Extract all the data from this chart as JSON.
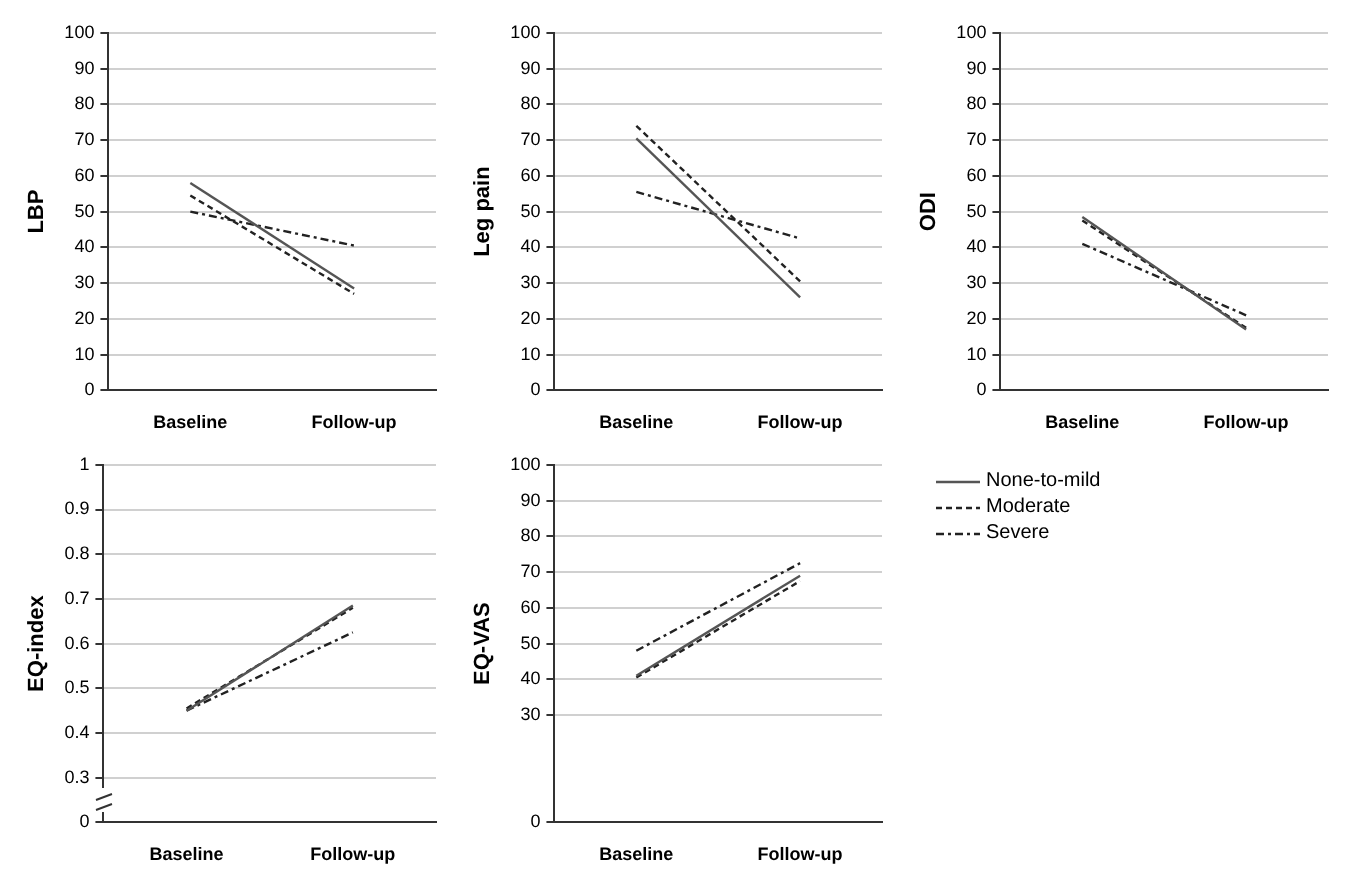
{
  "chart_data": [
    {
      "type": "line",
      "ylabel": "LBP",
      "categories": [
        "Baseline",
        "Follow-up"
      ],
      "ylim": [
        0,
        100
      ],
      "yticks": [
        0,
        10,
        20,
        30,
        40,
        50,
        60,
        70,
        80,
        90,
        100
      ],
      "grid": "y",
      "marker": "none",
      "series": [
        {
          "color": "#555555",
          "line_style": "solid",
          "values": [
            58,
            28.5
          ]
        },
        {
          "color": "#222222",
          "line_style": "dashed",
          "values": [
            54.5,
            27
          ]
        },
        {
          "color": "#222222",
          "line_style": "dashdot",
          "values": [
            50,
            40.5
          ]
        }
      ]
    },
    {
      "type": "line",
      "ylabel": "Leg pain",
      "categories": [
        "Baseline",
        "Follow-up"
      ],
      "ylim": [
        0,
        100
      ],
      "yticks": [
        0,
        10,
        20,
        30,
        40,
        50,
        60,
        70,
        80,
        90,
        100
      ],
      "grid": "y",
      "marker": "none",
      "series": [
        {
          "color": "#555555",
          "line_style": "solid",
          "values": [
            70.5,
            26
          ]
        },
        {
          "color": "#222222",
          "line_style": "dashed",
          "values": [
            74,
            30.5
          ]
        },
        {
          "color": "#222222",
          "line_style": "dashdot",
          "values": [
            55.5,
            42.5
          ]
        }
      ]
    },
    {
      "type": "line",
      "ylabel": "ODI",
      "categories": [
        "Baseline",
        "Follow-up"
      ],
      "ylim": [
        0,
        100
      ],
      "yticks": [
        0,
        10,
        20,
        30,
        40,
        50,
        60,
        70,
        80,
        90,
        100
      ],
      "grid": "y",
      "marker": "none",
      "series": [
        {
          "color": "#555555",
          "line_style": "solid",
          "values": [
            48.5,
            17
          ]
        },
        {
          "color": "#222222",
          "line_style": "dashed",
          "values": [
            47.5,
            17.5
          ]
        },
        {
          "color": "#222222",
          "line_style": "dashdot",
          "values": [
            41,
            21
          ]
        }
      ]
    },
    {
      "type": "line",
      "ylabel": "EQ-index",
      "categories": [
        "Baseline",
        "Follow-up"
      ],
      "ylim": [
        0.2,
        1
      ],
      "yticks": [
        {
          "value": 0.2,
          "label": "0"
        },
        0.3,
        0.4,
        0.5,
        0.6,
        0.7,
        0.8,
        0.9,
        1
      ],
      "grid": "y",
      "marker": "none",
      "series": [
        {
          "color": "#555555",
          "line_style": "solid",
          "values": [
            0.45,
            0.685
          ]
        },
        {
          "color": "#222222",
          "line_style": "dashed",
          "values": [
            0.455,
            0.68
          ]
        },
        {
          "color": "#222222",
          "line_style": "dashdot",
          "values": [
            0.45,
            0.625
          ]
        }
      ]
    },
    {
      "type": "line",
      "ylabel": "EQ-VAS",
      "categories": [
        "Baseline",
        "Follow-up"
      ],
      "ylim": [
        0,
        100
      ],
      "yticks": [
        0,
        30,
        40,
        50,
        60,
        70,
        80,
        90,
        100
      ],
      "grid": "y",
      "legend": "right",
      "marker": "none",
      "series": [
        {
          "name": "None-to-mild",
          "color": "#555555",
          "line_style": "solid",
          "values": [
            41,
            69
          ]
        },
        {
          "name": "Moderate",
          "color": "#222222",
          "line_style": "dashed",
          "values": [
            40.5,
            67.5
          ]
        },
        {
          "name": "Severe",
          "color": "#222222",
          "line_style": "dashdot",
          "values": [
            48,
            72.5
          ]
        }
      ]
    }
  ]
}
